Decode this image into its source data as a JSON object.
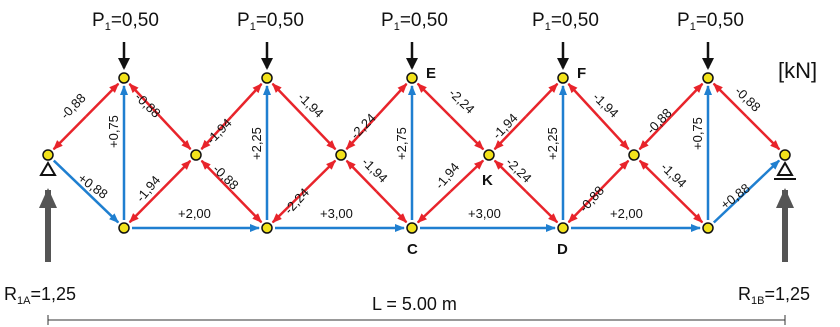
{
  "unit_label": "[kN]",
  "loads": [
    {
      "label_main": "P",
      "label_sub": "1",
      "label_value": "=0,50"
    },
    {
      "label_main": "P",
      "label_sub": "1",
      "label_value": "=0,50"
    },
    {
      "label_main": "P",
      "label_sub": "1",
      "label_value": "=0,50"
    },
    {
      "label_main": "P",
      "label_sub": "1",
      "label_value": "=0,50"
    },
    {
      "label_main": "P",
      "label_sub": "1",
      "label_value": "=0,50"
    }
  ],
  "node_labels": {
    "E": "E",
    "F": "F",
    "K": "K",
    "C": "C",
    "D": "D"
  },
  "reactions": {
    "left": {
      "main": "R",
      "sub": "1A",
      "value": "=1,25"
    },
    "right": {
      "main": "R",
      "sub": "1B",
      "value": "=1,25"
    }
  },
  "span_label": "L = 5.00 m",
  "member_forces": {
    "top_left_outer": "-0,88",
    "diag_up_1": "+0,75",
    "diag_from_support_left": "+0,88",
    "d1_down": "-0,88",
    "d1_up": "-1,94",
    "d2_up": "-1,94",
    "d2_down": "-0,88",
    "v2": "+2,25",
    "d3_down": "-1,94",
    "d3_up": "-2,24",
    "d4_up": "-2,24",
    "d4_down": "-1,94",
    "v3": "+2,75",
    "d5_down": "-2,24",
    "d5_up": "-1,94",
    "d6_up": "-1,94",
    "d6_down": "-2,24",
    "v4": "+2,25",
    "d7_down": "-1,94",
    "d7_up": "-0,88",
    "d8_up": "-0,88",
    "d8_down": "-1,94",
    "v5": "+0,75",
    "top_right_outer": "-0,88",
    "diag_from_support_right": "+0,88",
    "bottom_1": "+2,00",
    "bottom_2": "+3,00",
    "bottom_3": "+3,00",
    "bottom_4": "+2,00"
  },
  "colors": {
    "compression": "#e8242b",
    "tension": "#1f7fd0",
    "node_fill": "#f2e21b",
    "load_arrow": "#111111",
    "reaction_arrow": "#555555"
  }
}
